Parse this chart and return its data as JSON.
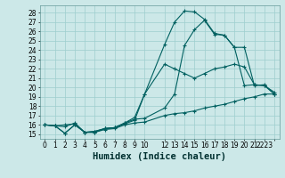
{
  "xlabel": "Humidex (Indice chaleur)",
  "ylabel": "",
  "bg_color": "#cce8e8",
  "line_color": "#006060",
  "xlim": [
    -0.5,
    23.5
  ],
  "ylim": [
    14.5,
    28.8
  ],
  "yticks": [
    15,
    16,
    17,
    18,
    19,
    20,
    21,
    22,
    23,
    24,
    25,
    26,
    27,
    28
  ],
  "xtick_positions": [
    0,
    1,
    2,
    3,
    4,
    5,
    6,
    7,
    8,
    9,
    10,
    12,
    13,
    14,
    15,
    16,
    17,
    18,
    19,
    20,
    21,
    22,
    23
  ],
  "xtick_labels": [
    "0",
    "1",
    "2",
    "3",
    "4",
    "5",
    "6",
    "7",
    "8",
    "9",
    "10",
    "12",
    "13",
    "14",
    "15",
    "16",
    "17",
    "18",
    "19",
    "20",
    "21",
    "2223",
    ""
  ],
  "series": [
    {
      "x": [
        0,
        1,
        2,
        3,
        4,
        5,
        6,
        7,
        8,
        9,
        10,
        12,
        13,
        14,
        15,
        16,
        17,
        18,
        19,
        20,
        21,
        22,
        23
      ],
      "y": [
        16.0,
        15.9,
        15.8,
        16.2,
        15.2,
        15.2,
        15.5,
        15.6,
        16.0,
        16.2,
        16.3,
        17.0,
        17.2,
        17.3,
        17.5,
        17.8,
        18.0,
        18.2,
        18.5,
        18.8,
        19.0,
        19.3,
        19.3
      ]
    },
    {
      "x": [
        0,
        1,
        2,
        3,
        4,
        5,
        6,
        7,
        8,
        9,
        10,
        12,
        13,
        14,
        15,
        16,
        17,
        18,
        19,
        20,
        21,
        22,
        23
      ],
      "y": [
        16.0,
        15.9,
        16.0,
        16.1,
        15.2,
        15.2,
        15.6,
        15.7,
        16.1,
        16.5,
        19.3,
        22.5,
        22.0,
        21.5,
        21.0,
        21.5,
        22.0,
        22.2,
        22.5,
        22.2,
        20.3,
        20.2,
        19.5
      ]
    },
    {
      "x": [
        0,
        1,
        2,
        3,
        4,
        5,
        6,
        7,
        8,
        9,
        10,
        12,
        13,
        14,
        15,
        16,
        17,
        18,
        19,
        20,
        21,
        22,
        23
      ],
      "y": [
        16.0,
        15.9,
        15.1,
        16.0,
        15.2,
        15.3,
        15.6,
        15.7,
        16.2,
        16.6,
        16.7,
        17.8,
        19.3,
        24.5,
        26.2,
        27.2,
        25.7,
        25.6,
        24.3,
        24.3,
        20.2,
        20.3,
        19.3
      ]
    },
    {
      "x": [
        0,
        1,
        2,
        3,
        4,
        5,
        6,
        7,
        8,
        9,
        10,
        12,
        13,
        14,
        15,
        16,
        17,
        18,
        19,
        20,
        21,
        22,
        23
      ],
      "y": [
        16.0,
        15.9,
        15.1,
        16.0,
        15.2,
        15.3,
        15.6,
        15.7,
        16.2,
        16.8,
        19.3,
        24.6,
        27.0,
        28.2,
        28.1,
        27.3,
        25.8,
        25.6,
        24.3,
        20.2,
        20.3,
        20.2,
        19.3
      ]
    }
  ],
  "grid_color": "#9ecece",
  "tick_fontsize": 5.5,
  "xlabel_fontsize": 7.5
}
